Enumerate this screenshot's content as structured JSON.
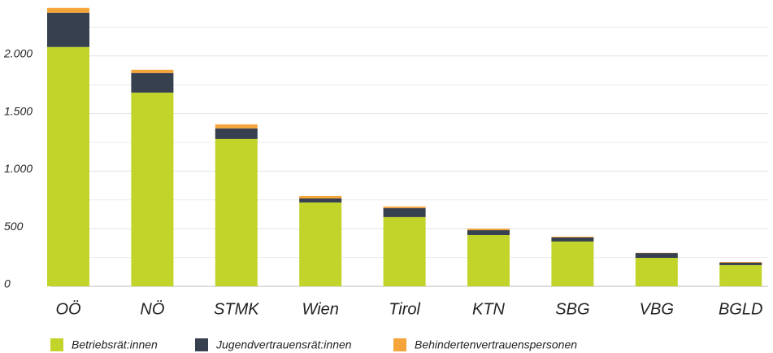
{
  "chart_data": {
    "type": "stacked_bar",
    "categories": [
      "OÖ",
      "NÖ",
      "STMK",
      "Wien",
      "Tirol",
      "KTN",
      "SBG",
      "VBG",
      "BGLD"
    ],
    "series": [
      {
        "name": "Betriebsrät:innen",
        "color": "#c2d32a",
        "values": [
          2078,
          1682,
          1279,
          728,
          601,
          445,
          389,
          247,
          184
        ]
      },
      {
        "name": "Jugendvertrauensrät:innen",
        "color": "#36404e",
        "values": [
          297,
          170,
          92,
          35,
          78,
          42,
          35,
          42,
          21
        ]
      },
      {
        "name": "Behindertenvertrauenspersonen",
        "color": "#f5a43a",
        "values": [
          42,
          28,
          35,
          21,
          14,
          14,
          7,
          2,
          7
        ]
      }
    ],
    "ylim": [
      0,
      2500
    ],
    "yticks": [
      0,
      500,
      {
        "value": 1000,
        "label": "1.000"
      },
      {
        "value": 1500,
        "label": "1.500"
      },
      {
        "value": 2000,
        "label": "2.000"
      }
    ],
    "minor_yticks": [
      250,
      750,
      1250,
      1750,
      2250
    ],
    "grid": true,
    "legend": "bottom"
  }
}
